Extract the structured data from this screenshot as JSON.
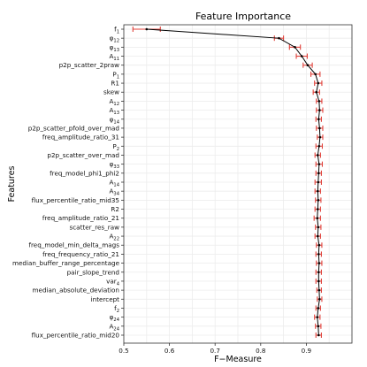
{
  "chart_data": {
    "type": "line",
    "title": "Feature Importance",
    "xlabel": "F−Measure",
    "ylabel": "Features",
    "xlim": [
      0.5,
      1.0
    ],
    "xticks": [
      "0.5",
      "0.6",
      "0.7",
      "0.8",
      "0.9"
    ],
    "grid": true,
    "error_bars": true,
    "colors": {
      "line": "#000000",
      "error_bar": "#e0413a",
      "grid": "#ececec"
    },
    "points": [
      {
        "name": "f1",
        "base": "f",
        "sub": "1",
        "x": 0.55,
        "err": 0.03
      },
      {
        "name": "φ12",
        "base": "φ",
        "sub": "12",
        "x": 0.84,
        "err": 0.01
      },
      {
        "name": "φ13",
        "base": "φ",
        "sub": "13",
        "x": 0.875,
        "err": 0.012
      },
      {
        "name": "A11",
        "base": "A",
        "sub": "11",
        "x": 0.89,
        "err": 0.012
      },
      {
        "name": "p2p_scatter_2praw",
        "base": "p2p_scatter_2praw",
        "sub": "",
        "x": 0.903,
        "err": 0.01
      },
      {
        "name": "P1",
        "base": "P",
        "sub": "1",
        "x": 0.92,
        "err": 0.01
      },
      {
        "name": "R1",
        "base": "R1",
        "sub": "",
        "x": 0.926,
        "err": 0.008
      },
      {
        "name": "skew",
        "base": "skew",
        "sub": "",
        "x": 0.922,
        "err": 0.007
      },
      {
        "name": "A12",
        "base": "A",
        "sub": "12",
        "x": 0.928,
        "err": 0.006
      },
      {
        "name": "A13",
        "base": "A",
        "sub": "13",
        "x": 0.929,
        "err": 0.007
      },
      {
        "name": "φ14",
        "base": "φ",
        "sub": "14",
        "x": 0.927,
        "err": 0.006
      },
      {
        "name": "p2p_scatter_pfold_over_mad",
        "base": "p2p_scatter_pfold_over_mad",
        "sub": "",
        "x": 0.929,
        "err": 0.007
      },
      {
        "name": "freq_amplitude_ratio_31",
        "base": "freq_amplitude_ratio_31",
        "sub": "",
        "x": 0.93,
        "err": 0.006
      },
      {
        "name": "P2",
        "base": "P",
        "sub": "2",
        "x": 0.928,
        "err": 0.007
      },
      {
        "name": "p2p_scatter_over_mad",
        "base": "p2p_scatter_over_mad",
        "sub": "",
        "x": 0.925,
        "err": 0.006
      },
      {
        "name": "φ33",
        "base": "φ",
        "sub": "33",
        "x": 0.928,
        "err": 0.007
      },
      {
        "name": "freq_model_phi1_phi2",
        "base": "freq_model_phi1_phi2",
        "sub": "",
        "x": 0.927,
        "err": 0.006
      },
      {
        "name": "A14",
        "base": "A",
        "sub": "14",
        "x": 0.926,
        "err": 0.007
      },
      {
        "name": "A34",
        "base": "A",
        "sub": "34",
        "x": 0.925,
        "err": 0.006
      },
      {
        "name": "flux_percentile_ratio_mid35",
        "base": "flux_percentile_ratio_mid35",
        "sub": "",
        "x": 0.926,
        "err": 0.006
      },
      {
        "name": "R2",
        "base": "R2",
        "sub": "",
        "x": 0.925,
        "err": 0.006
      },
      {
        "name": "freq_amplitude_ratio_21",
        "base": "freq_amplitude_ratio_21",
        "sub": "",
        "x": 0.924,
        "err": 0.007
      },
      {
        "name": "scatter_res_raw",
        "base": "scatter_res_raw",
        "sub": "",
        "x": 0.926,
        "err": 0.006
      },
      {
        "name": "A22",
        "base": "A",
        "sub": "22",
        "x": 0.925,
        "err": 0.006
      },
      {
        "name": "freq_model_min_delta_mags",
        "base": "freq_model_min_delta_mags",
        "sub": "",
        "x": 0.928,
        "err": 0.006
      },
      {
        "name": "freq_frequency_ratio_21",
        "base": "freq_frequency_ratio_21",
        "sub": "",
        "x": 0.927,
        "err": 0.006
      },
      {
        "name": "median_buffer_range_percentage",
        "base": "median_buffer_range_percentage",
        "sub": "",
        "x": 0.928,
        "err": 0.006
      },
      {
        "name": "pair_slope_trend",
        "base": "pair_slope_trend",
        "sub": "",
        "x": 0.927,
        "err": 0.006
      },
      {
        "name": "var4",
        "base": "var",
        "sub": "4",
        "x": 0.927,
        "err": 0.006
      },
      {
        "name": "median_absolute_deviation",
        "base": "median_absolute_deviation",
        "sub": "",
        "x": 0.928,
        "err": 0.005
      },
      {
        "name": "intercept",
        "base": "intercept",
        "sub": "",
        "x": 0.929,
        "err": 0.005
      },
      {
        "name": "f2",
        "base": "f",
        "sub": "2",
        "x": 0.926,
        "err": 0.005
      },
      {
        "name": "φ24",
        "base": "φ",
        "sub": "24",
        "x": 0.924,
        "err": 0.006
      },
      {
        "name": "A24",
        "base": "A",
        "sub": "24",
        "x": 0.926,
        "err": 0.006
      },
      {
        "name": "flux_percentile_ratio_mid20",
        "base": "flux_percentile_ratio_mid20",
        "sub": "",
        "x": 0.927,
        "err": 0.006
      }
    ]
  }
}
